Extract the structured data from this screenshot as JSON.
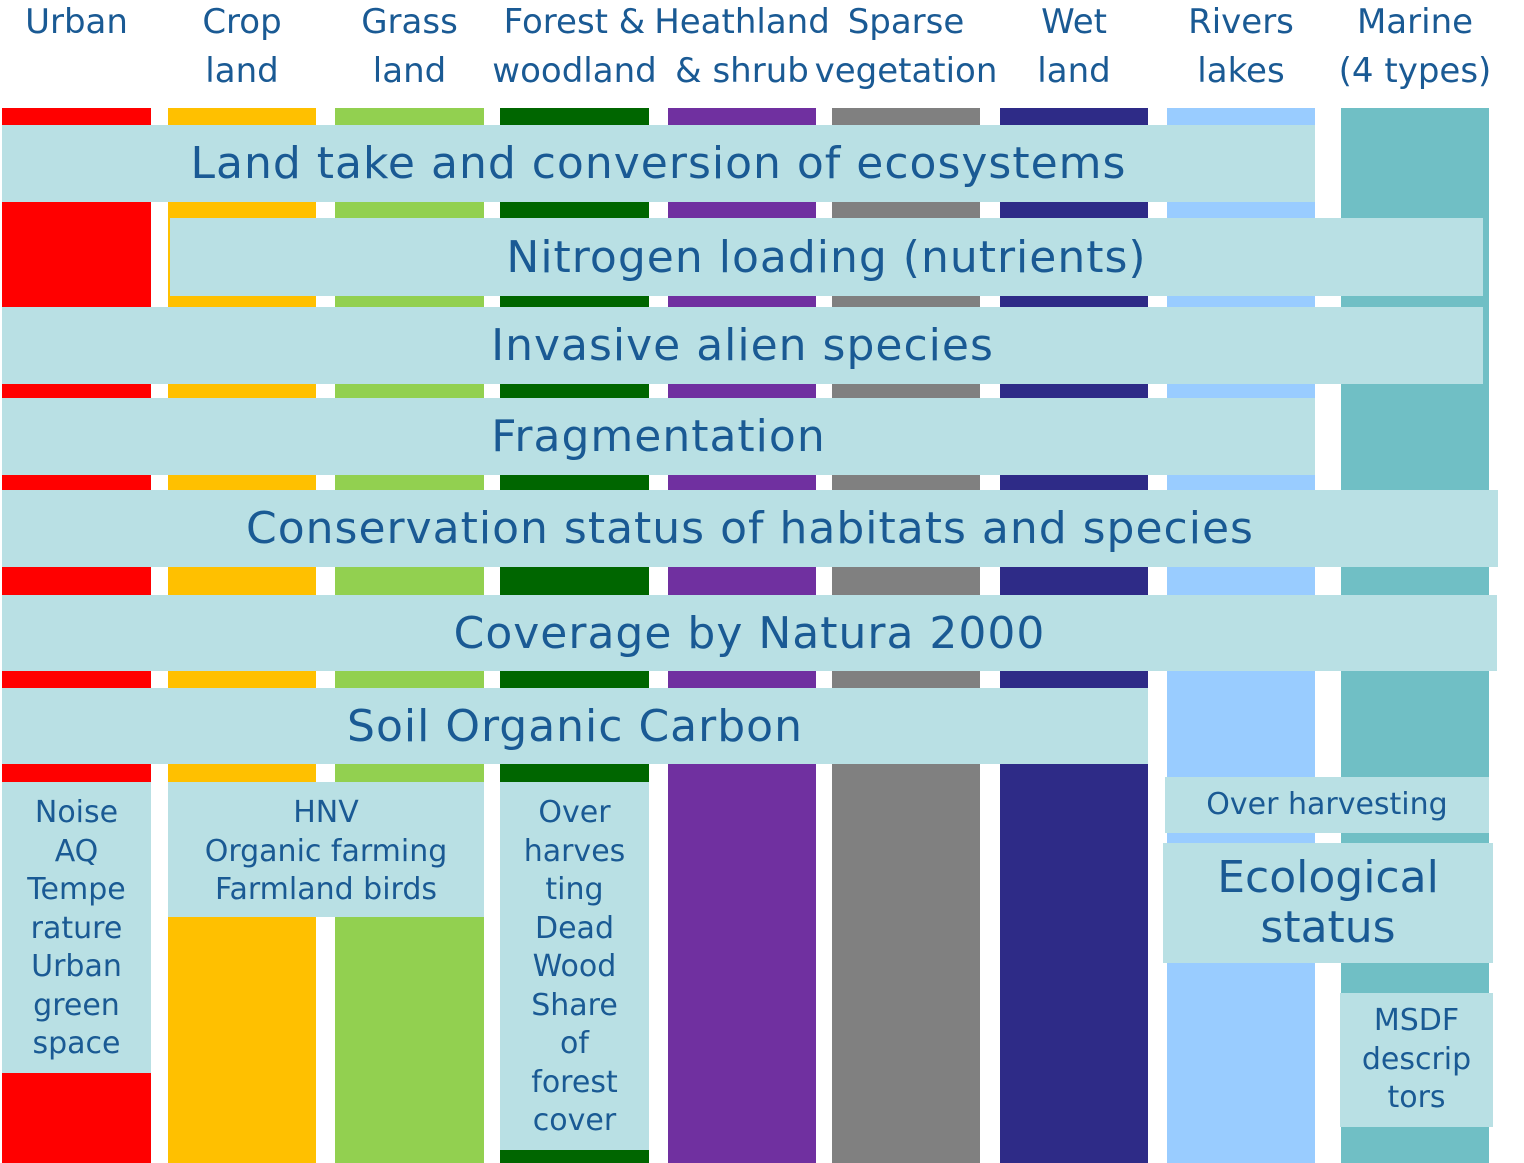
{
  "columns": [
    {
      "lines": [
        "Urban"
      ],
      "color": "#ff0000"
    },
    {
      "lines": [
        "Crop",
        "land"
      ],
      "color": "#ffc000"
    },
    {
      "lines": [
        "Grass",
        "land"
      ],
      "color": "#92d050"
    },
    {
      "lines": [
        "Forest &",
        "woodland"
      ],
      "color": "#006600"
    },
    {
      "lines": [
        "Heathland",
        "& shrub"
      ],
      "color": "#7030a0"
    },
    {
      "lines": [
        "Sparse",
        "vegetation"
      ],
      "color": "#808080"
    },
    {
      "lines": [
        "Wet",
        "land"
      ],
      "color": "#2e2b87"
    },
    {
      "lines": [
        "Rivers",
        "lakes"
      ],
      "color": "#99ccff"
    },
    {
      "lines": [
        "Marine",
        "(4 types)"
      ],
      "color": "#70bfc5"
    }
  ],
  "bands": [
    {
      "lines": [
        "Land take and conversion of ecosystems"
      ]
    },
    {
      "lines": [
        "Nitrogen loading (nutrients)"
      ]
    },
    {
      "lines": [
        "Invasive alien species"
      ]
    },
    {
      "lines": [
        "Fragmentation"
      ]
    },
    {
      "lines": [
        "Conservation status of habitats and species"
      ]
    },
    {
      "lines": [
        "Coverage by Natura 2000"
      ]
    },
    {
      "lines": [
        "Soil Organic Carbon"
      ]
    }
  ],
  "boxes": [
    {
      "lines": [
        "Noise",
        "AQ",
        "Tempe",
        "rature",
        "Urban",
        "green",
        "space"
      ]
    },
    {
      "lines": [
        "HNV",
        "Organic farming",
        "Farmland birds"
      ]
    },
    {
      "lines": [
        "Over",
        "harves",
        "ting",
        "Dead",
        "Wood",
        "Share",
        "of",
        "forest",
        "cover"
      ]
    },
    {
      "lines": [
        "Over harvesting"
      ]
    },
    {
      "lines": [
        "Ecological",
        "status"
      ]
    },
    {
      "lines": [
        "MSDF",
        "descrip",
        "tors"
      ]
    }
  ]
}
